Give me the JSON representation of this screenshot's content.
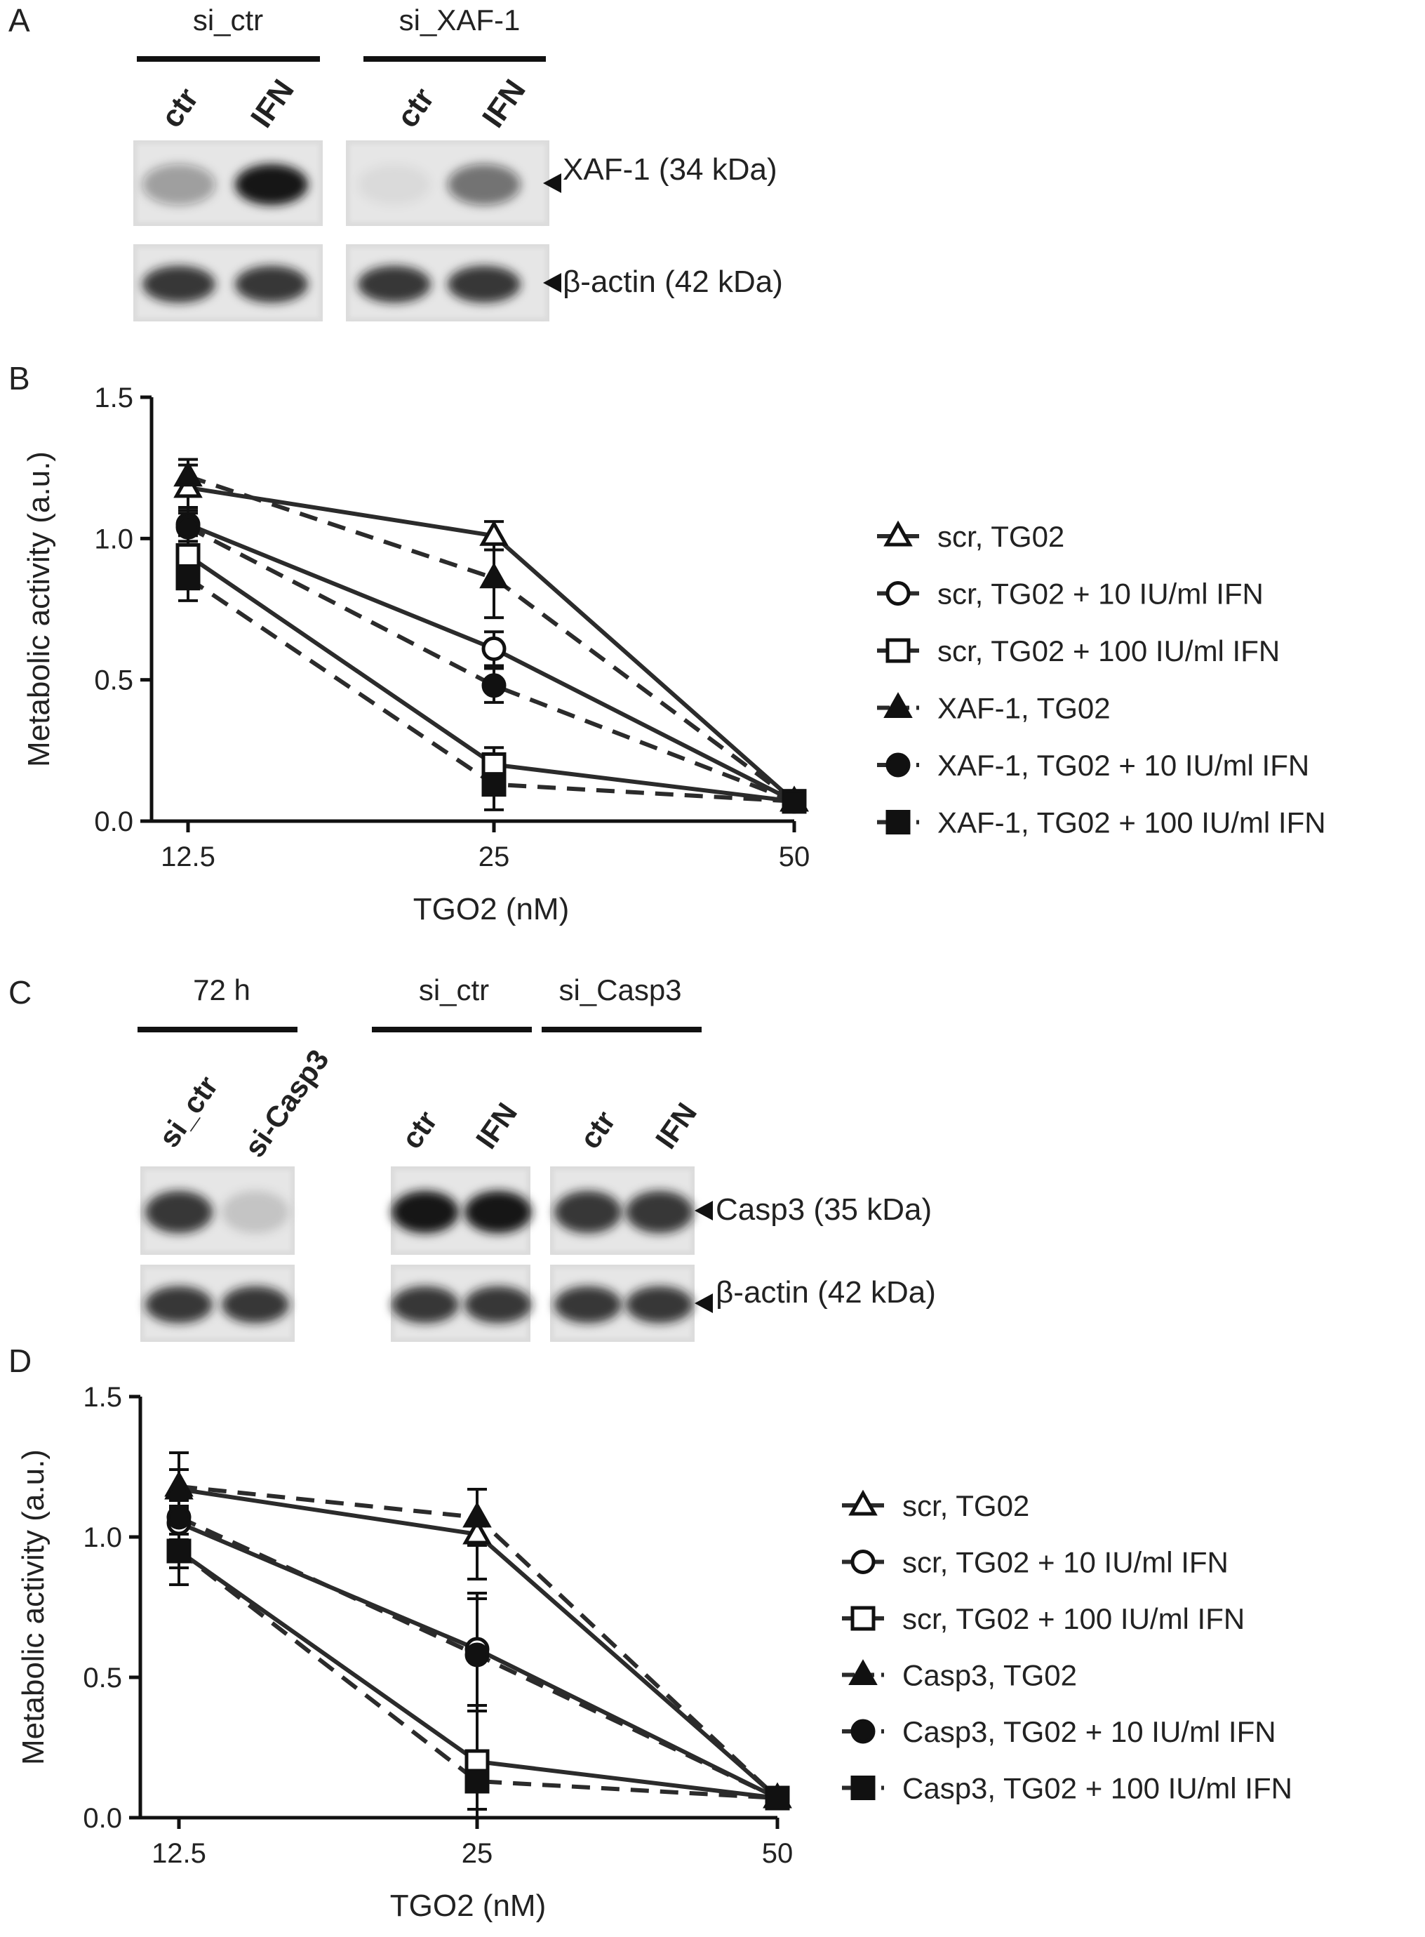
{
  "panels": {
    "A": {
      "letter": "A",
      "groups": [
        "si_ctr",
        "si_XAF-1"
      ],
      "lanes": [
        "ctr",
        "IFN",
        "ctr",
        "IFN"
      ],
      "bands": [
        {
          "label": "XAF-1 (34 kDa)",
          "intensity": [
            0.35,
            1.0,
            0.05,
            0.55
          ]
        },
        {
          "label": "β-actin (42 kDa)",
          "intensity": [
            0.85,
            0.85,
            0.85,
            0.85
          ]
        }
      ]
    },
    "C": {
      "letter": "C",
      "groups": [
        "72 h",
        "si_ctr",
        "si_Casp3"
      ],
      "lanes": [
        "si_ctr",
        "si-Casp3",
        "ctr",
        "IFN",
        "ctr",
        "IFN"
      ],
      "bands": [
        {
          "label": "Casp3 (35 kDa)",
          "intensity": [
            0.85,
            0.15,
            1.0,
            1.0,
            0.85,
            0.85
          ]
        },
        {
          "label": "β-actin (42 kDa)",
          "intensity": [
            0.85,
            0.85,
            0.85,
            0.85,
            0.85,
            0.85
          ]
        }
      ]
    }
  },
  "chart_data": [
    {
      "panel": "B",
      "type": "line",
      "xlabel": "TGO2 (nM)",
      "ylabel": "Metabolic activity (a.u.)",
      "x": [
        12.5,
        25,
        50
      ],
      "x_tick_labels": [
        "12.5",
        "25",
        "50"
      ],
      "ylim": [
        0,
        1.5
      ],
      "y_ticks": [
        0.0,
        0.5,
        1.0,
        1.5
      ],
      "y_tick_labels": [
        "0.0",
        "0.5",
        "1.0",
        "1.5"
      ],
      "series": [
        {
          "name": "scr, TG02",
          "marker": "triangle-open",
          "line": "solid",
          "values": [
            1.18,
            1.01,
            0.07
          ],
          "error": [
            0.08,
            0.05,
            0.02
          ]
        },
        {
          "name": "scr, TG02 + 10 IU/ml IFN",
          "marker": "circle-open",
          "line": "solid",
          "values": [
            1.05,
            0.61,
            0.07
          ],
          "error": [
            0.06,
            0.06,
            0.02
          ]
        },
        {
          "name": "scr, TG02 + 100 IU/ml IFN",
          "marker": "square-open",
          "line": "solid",
          "values": [
            0.94,
            0.2,
            0.07
          ],
          "error": [
            0.07,
            0.06,
            0.02
          ]
        },
        {
          "name": "XAF-1, TG02",
          "marker": "triangle-filled",
          "line": "dashed",
          "values": [
            1.22,
            0.86,
            0.07
          ],
          "error": [
            0.06,
            0.14,
            0.02
          ]
        },
        {
          "name": "XAF-1, TG02 + 10 IU/ml IFN",
          "marker": "circle-filled",
          "line": "dashed",
          "values": [
            1.04,
            0.48,
            0.07
          ],
          "error": [
            0.05,
            0.06,
            0.02
          ]
        },
        {
          "name": "XAF-1, TG02 + 100 IU/ml IFN",
          "marker": "square-filled",
          "line": "dashed",
          "values": [
            0.86,
            0.13,
            0.07
          ],
          "error": [
            0.08,
            0.09,
            0.02
          ]
        }
      ]
    },
    {
      "panel": "D",
      "type": "line",
      "xlabel": "TGO2 (nM)",
      "ylabel": "Metabolic activity (a.u.)",
      "x": [
        12.5,
        25,
        50
      ],
      "x_tick_labels": [
        "12.5",
        "25",
        "50"
      ],
      "ylim": [
        0,
        1.5
      ],
      "y_ticks": [
        0.0,
        0.5,
        1.0,
        1.5
      ],
      "y_tick_labels": [
        "0.0",
        "0.5",
        "1.0",
        "1.5"
      ],
      "series": [
        {
          "name": "scr, TG02",
          "marker": "triangle-open",
          "line": "solid",
          "values": [
            1.17,
            1.01,
            0.07
          ],
          "error": [
            0.07,
            0.16,
            0.02
          ]
        },
        {
          "name": "scr, TG02 + 10 IU/ml IFN",
          "marker": "circle-open",
          "line": "solid",
          "values": [
            1.05,
            0.6,
            0.07
          ],
          "error": [
            0.06,
            0.2,
            0.02
          ]
        },
        {
          "name": "scr, TG02 + 100 IU/ml IFN",
          "marker": "square-open",
          "line": "solid",
          "values": [
            0.95,
            0.2,
            0.07
          ],
          "error": [
            0.12,
            0.2,
            0.02
          ]
        },
        {
          "name": "Casp3, TG02",
          "marker": "triangle-filled",
          "line": "dashed",
          "values": [
            1.18,
            1.07,
            0.07
          ],
          "error": [
            0.12,
            0.1,
            0.02
          ]
        },
        {
          "name": "Casp3, TG02 + 10 IU/ml IFN",
          "marker": "circle-filled",
          "line": "dashed",
          "values": [
            1.07,
            0.58,
            0.07
          ],
          "error": [
            0.06,
            0.2,
            0.02
          ]
        },
        {
          "name": "Casp3, TG02 + 100 IU/ml IFN",
          "marker": "square-filled",
          "line": "dashed",
          "values": [
            0.95,
            0.13,
            0.07
          ],
          "error": [
            0.06,
            0.1,
            0.02
          ]
        }
      ]
    }
  ]
}
